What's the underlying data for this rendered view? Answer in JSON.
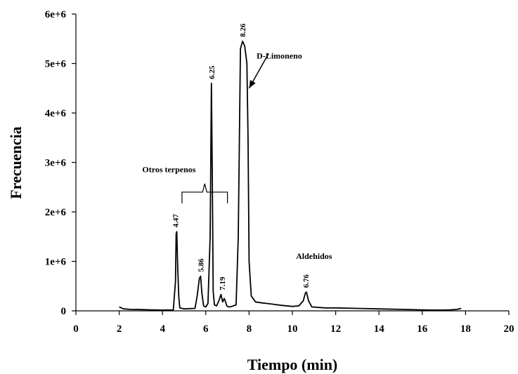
{
  "chart_data": {
    "type": "line",
    "xlabel": "Tiempo (min)",
    "ylabel": "Frecuencia",
    "xlim": [
      0,
      20
    ],
    "ylim": [
      0,
      6000000
    ],
    "x_ticks": [
      0,
      2,
      4,
      6,
      8,
      10,
      12,
      14,
      16,
      18,
      20
    ],
    "y_ticks": [
      0,
      1000000,
      2000000,
      3000000,
      4000000,
      5000000,
      6000000
    ],
    "y_tick_labels": [
      "0",
      "1e+6",
      "2e+6",
      "3e+6",
      "4e+6",
      "5e+6",
      "6e+6"
    ],
    "grid": false,
    "line_color": "#000000",
    "series": [
      {
        "x": [
          2.0,
          2.2,
          2.5,
          3.0,
          3.5,
          4.0,
          4.5,
          4.6,
          4.63,
          4.66,
          4.7,
          4.75,
          4.8,
          5.0,
          5.5,
          5.6,
          5.7,
          5.76,
          5.82,
          5.9,
          6.0,
          6.1,
          6.2,
          6.26,
          6.3,
          6.34,
          6.4,
          6.5,
          6.6,
          6.7,
          6.78,
          6.85,
          6.9,
          6.97,
          7.05,
          7.1,
          7.2,
          7.4,
          7.5,
          7.6,
          7.7,
          7.8,
          7.9,
          7.95,
          8.0,
          8.1,
          8.3,
          8.6,
          9.0,
          9.5,
          10.0,
          10.3,
          10.5,
          10.6,
          10.65,
          10.75,
          10.9,
          11.5,
          12.0,
          13.0,
          14.0,
          15.0,
          16.0,
          16.5,
          17.0,
          17.3,
          17.6,
          17.8
        ],
        "y": [
          80000,
          40000,
          30000,
          25000,
          20000,
          15000,
          20000,
          600000,
          1550000,
          1600000,
          900000,
          300000,
          60000,
          40000,
          50000,
          300000,
          650000,
          700000,
          350000,
          100000,
          80000,
          150000,
          1500000,
          4600000,
          2800000,
          400000,
          120000,
          100000,
          200000,
          330000,
          180000,
          250000,
          200000,
          100000,
          80000,
          80000,
          90000,
          120000,
          1500000,
          5300000,
          5450000,
          5350000,
          5000000,
          3500000,
          1000000,
          300000,
          180000,
          160000,
          140000,
          110000,
          90000,
          100000,
          200000,
          360000,
          380000,
          200000,
          80000,
          60000,
          60000,
          50000,
          40000,
          30000,
          20000,
          15000,
          15000,
          20000,
          30000,
          50000
        ]
      }
    ],
    "peak_labels": [
      {
        "x": 4.6,
        "y": 1600000,
        "text": "4.47"
      },
      {
        "x": 5.76,
        "y": 700000,
        "text": "5.86"
      },
      {
        "x": 6.26,
        "y": 4600000,
        "text": "6.25"
      },
      {
        "x": 6.75,
        "y": 330000,
        "text": "7.19"
      },
      {
        "x": 7.7,
        "y": 5450000,
        "text": "8.26"
      },
      {
        "x": 10.62,
        "y": 380000,
        "text": "6.76"
      }
    ],
    "annotations": [
      {
        "text": "D-Limoneno",
        "x": 9.4,
        "y": 5100000
      },
      {
        "text": "Otros terpenos",
        "x": 4.3,
        "y": 2800000
      },
      {
        "text": "Aldehidos",
        "x": 11.0,
        "y": 1050000
      }
    ],
    "brace": {
      "x_start": 4.9,
      "x_end": 7.0,
      "y": 2400000
    },
    "arrow": {
      "from_x": 8.9,
      "from_y": 5200000,
      "to_x": 8.0,
      "to_y": 4500000
    }
  }
}
